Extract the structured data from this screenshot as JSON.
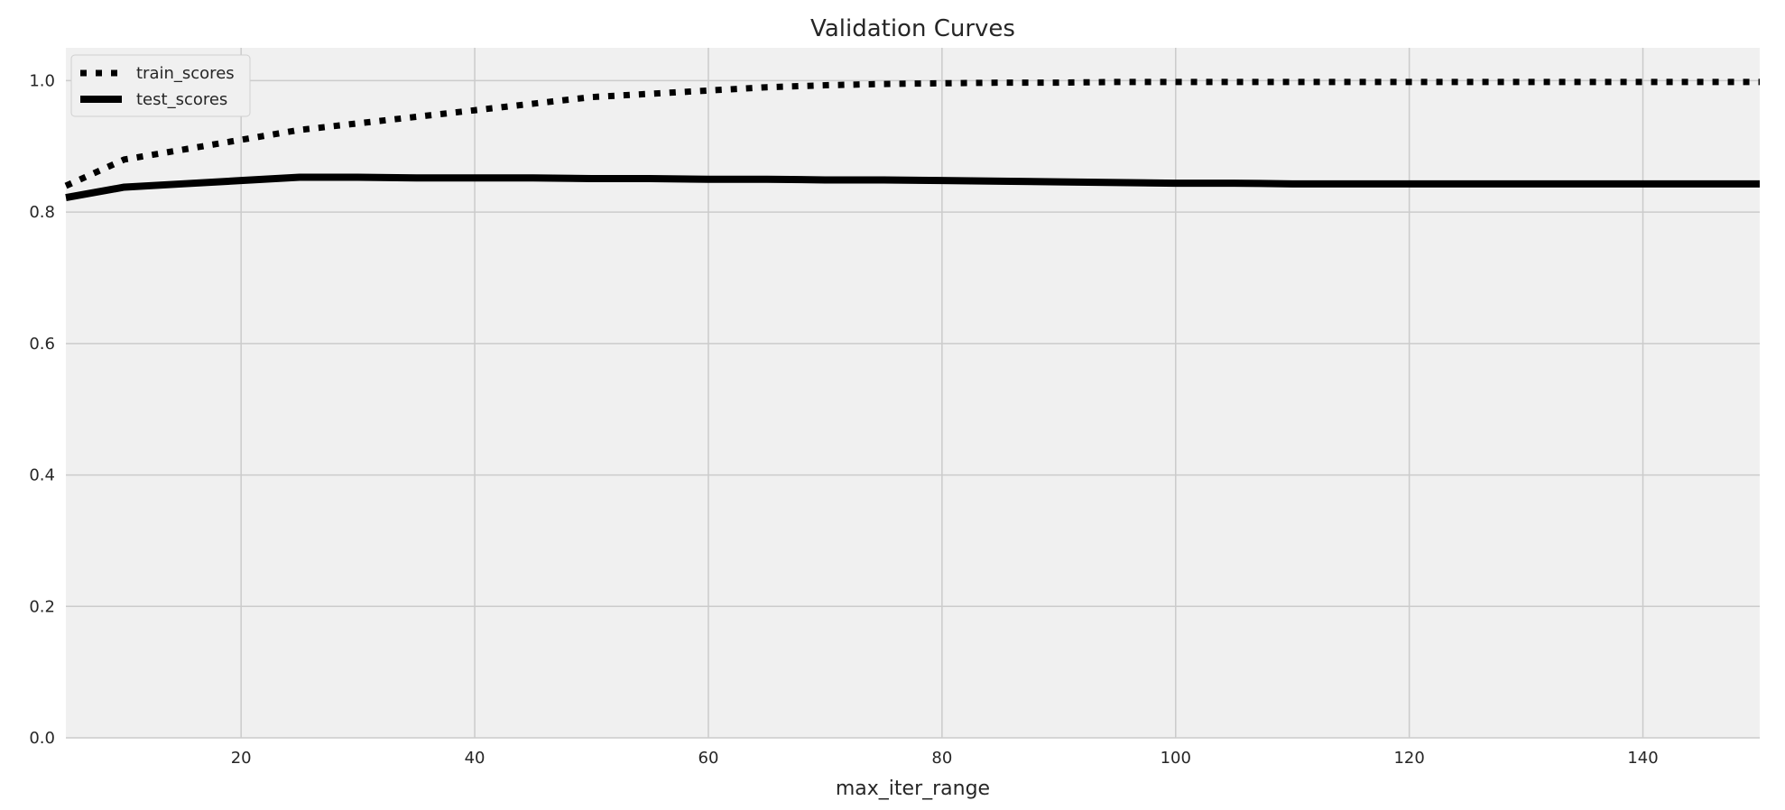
{
  "chart_data": {
    "type": "line",
    "title": "Validation Curves",
    "xlabel": "max_iter_range",
    "ylabel": "",
    "xlim": [
      5,
      150
    ],
    "ylim": [
      0.0,
      1.05
    ],
    "xticks": [
      20,
      40,
      60,
      80,
      100,
      120,
      140
    ],
    "xtick_labels": [
      "20",
      "40",
      "60",
      "80",
      "100",
      "120",
      "140"
    ],
    "yticks": [
      0.0,
      0.2,
      0.4,
      0.6,
      0.8,
      1.0
    ],
    "ytick_labels": [
      "0.0",
      "0.2",
      "0.4",
      "0.6",
      "0.8",
      "1.0"
    ],
    "grid": true,
    "legend_position": "top-left",
    "x": [
      5,
      10,
      15,
      20,
      25,
      30,
      35,
      40,
      45,
      50,
      55,
      60,
      65,
      70,
      75,
      80,
      85,
      90,
      95,
      100,
      105,
      110,
      115,
      120,
      125,
      130,
      135,
      140,
      145,
      150
    ],
    "series": [
      {
        "name": "train_scores",
        "style": "dotted",
        "color": "#000000",
        "values": [
          0.84,
          0.88,
          0.895,
          0.91,
          0.925,
          0.935,
          0.945,
          0.955,
          0.965,
          0.975,
          0.98,
          0.985,
          0.99,
          0.993,
          0.995,
          0.996,
          0.997,
          0.997,
          0.998,
          0.998,
          0.998,
          0.998,
          0.998,
          0.998,
          0.998,
          0.998,
          0.998,
          0.998,
          0.998,
          0.998
        ]
      },
      {
        "name": "test_scores",
        "style": "solid",
        "color": "#000000",
        "values": [
          0.822,
          0.838,
          0.843,
          0.848,
          0.853,
          0.853,
          0.852,
          0.852,
          0.852,
          0.851,
          0.851,
          0.85,
          0.85,
          0.849,
          0.849,
          0.848,
          0.847,
          0.846,
          0.845,
          0.844,
          0.844,
          0.843,
          0.843,
          0.843,
          0.843,
          0.843,
          0.843,
          0.843,
          0.843,
          0.843
        ]
      }
    ]
  },
  "colors": {
    "plot_background": "#f0f0f0",
    "grid": "#cbcbcb",
    "line": "#000000"
  }
}
